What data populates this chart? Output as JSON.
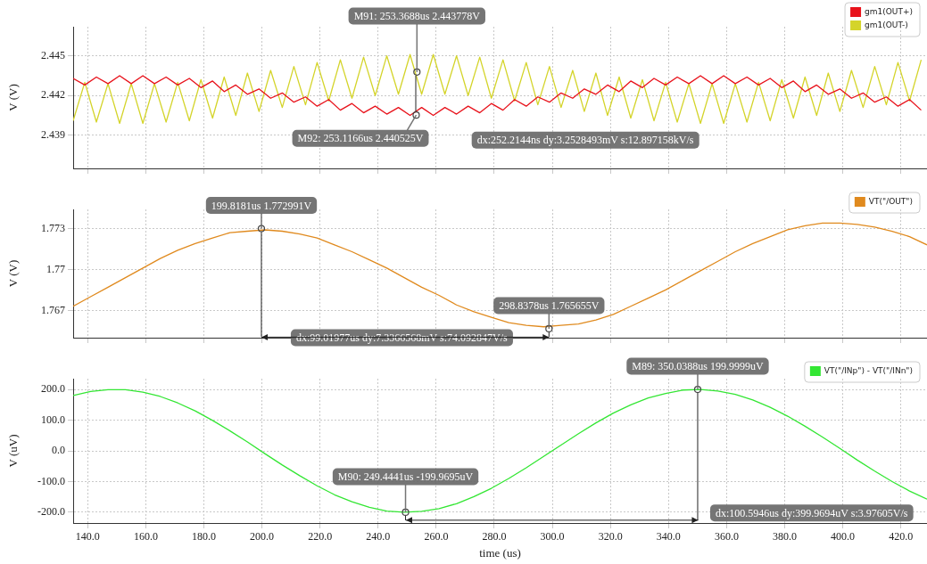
{
  "chart_data": [
    {
      "type": "line",
      "ylabel": "V (V)",
      "grid": true,
      "legend": "top right",
      "tick_labels": "y",
      "marker": "none",
      "xlim": [
        135,
        429
      ],
      "ylim": [
        2.4365,
        2.4472
      ],
      "xticks": [
        140,
        160,
        180,
        200,
        220,
        240,
        260,
        280,
        300,
        320,
        340,
        360,
        380,
        400,
        420
      ],
      "yticks": [
        2.439,
        2.442,
        2.445
      ],
      "x": [
        135,
        139,
        143,
        147,
        151,
        155,
        159,
        163,
        167,
        171,
        175,
        179,
        183,
        187,
        191,
        195,
        199,
        203,
        207,
        211,
        215,
        219,
        223,
        227,
        231,
        235,
        239,
        243,
        247,
        251,
        255,
        259,
        263,
        267,
        271,
        275,
        279,
        283,
        287,
        291,
        295,
        299,
        303,
        307,
        311,
        315,
        319,
        323,
        327,
        331,
        335,
        339,
        343,
        347,
        351,
        355,
        359,
        363,
        367,
        371,
        375,
        379,
        383,
        387,
        391,
        395,
        399,
        403,
        407,
        411,
        415,
        419,
        423,
        427
      ],
      "series": [
        {
          "name": "gm1(OUT+)",
          "color": "#e8121b",
          "values": [
            2.4433,
            2.4428,
            2.4434,
            2.4429,
            2.4435,
            2.4429,
            2.4435,
            2.4429,
            2.4434,
            2.4428,
            2.4433,
            2.4426,
            2.4431,
            2.4423,
            2.4428,
            2.4421,
            2.4425,
            2.4418,
            2.4422,
            2.4415,
            2.4419,
            2.4412,
            2.4417,
            2.4409,
            2.4414,
            2.4407,
            2.4412,
            2.4406,
            2.4411,
            2.4405,
            2.4411,
            2.4405,
            2.4411,
            2.4406,
            2.4412,
            2.4407,
            2.4414,
            2.4409,
            2.4417,
            2.4412,
            2.4419,
            2.4415,
            2.4422,
            2.4418,
            2.4425,
            2.4421,
            2.4428,
            2.4423,
            2.4431,
            2.4426,
            2.4433,
            2.4428,
            2.4434,
            2.4429,
            2.4435,
            2.4429,
            2.4435,
            2.4429,
            2.4434,
            2.4428,
            2.4433,
            2.4426,
            2.4431,
            2.4423,
            2.4428,
            2.4421,
            2.4425,
            2.4418,
            2.4422,
            2.4415,
            2.4419,
            2.4412,
            2.4417,
            2.4409
          ]
        },
        {
          "name": "gm1(OUT-)",
          "color": "#d4d42a",
          "values": [
            2.4401,
            2.443,
            2.44,
            2.4429,
            2.4399,
            2.4429,
            2.4399,
            2.4429,
            2.44,
            2.443,
            2.4401,
            2.4432,
            2.4403,
            2.4434,
            2.4405,
            2.4437,
            2.4408,
            2.4439,
            2.4411,
            2.4442,
            2.4413,
            2.4445,
            2.4416,
            2.4447,
            2.4418,
            2.4449,
            2.442,
            2.445,
            2.4421,
            2.4451,
            2.4421,
            2.4451,
            2.4421,
            2.445,
            2.442,
            2.4449,
            2.4418,
            2.4447,
            2.4416,
            2.4445,
            2.4413,
            2.4442,
            2.4411,
            2.4439,
            2.4408,
            2.4437,
            2.4405,
            2.4434,
            2.4403,
            2.4432,
            2.4401,
            2.443,
            2.44,
            2.4429,
            2.4399,
            2.4429,
            2.4399,
            2.4429,
            2.44,
            2.443,
            2.4401,
            2.4432,
            2.4403,
            2.4434,
            2.4405,
            2.4437,
            2.4408,
            2.4439,
            2.4411,
            2.4442,
            2.4413,
            2.4445,
            2.4416,
            2.4447
          ]
        }
      ],
      "annotations": [
        {
          "text": "M91: 253.3688us 2.443778V",
          "x": 253.3688,
          "y": 2.443778
        },
        {
          "text": "M92: 253.1166us 2.440525V",
          "x": 253.1166,
          "y": 2.440525
        },
        "dx:252.2144ns dy:3.2528493mV s:12.897158kV/s"
      ]
    },
    {
      "type": "line",
      "ylabel": "V (V)",
      "grid": true,
      "legend": "top right",
      "tick_labels": "y",
      "marker": "none",
      "xlim": [
        135,
        429
      ],
      "ylim": [
        1.765,
        1.7744
      ],
      "xticks": [
        140,
        160,
        180,
        200,
        220,
        240,
        260,
        280,
        300,
        320,
        340,
        360,
        380,
        400,
        420
      ],
      "yticks": [
        1.767,
        1.77,
        1.773
      ],
      "x": [
        135,
        141,
        147,
        153,
        159,
        165,
        171,
        177,
        183,
        189,
        195,
        201,
        207,
        213,
        219,
        225,
        231,
        237,
        243,
        249,
        255,
        261,
        267,
        273,
        279,
        285,
        291,
        297,
        303,
        309,
        315,
        321,
        327,
        333,
        339,
        345,
        351,
        357,
        363,
        369,
        375,
        381,
        387,
        393,
        399,
        405,
        411,
        417,
        423,
        429
      ],
      "series": [
        {
          "name": "VT(\"/OUT\")",
          "color": "#e08a1e",
          "values": [
            1.7673,
            1.768,
            1.7687,
            1.7694,
            1.7701,
            1.7708,
            1.7714,
            1.7719,
            1.7723,
            1.7727,
            1.7728,
            1.7729,
            1.7728,
            1.7726,
            1.7723,
            1.7718,
            1.7713,
            1.7707,
            1.7701,
            1.7694,
            1.7687,
            1.7681,
            1.7674,
            1.7669,
            1.7665,
            1.7661,
            1.7659,
            1.7658,
            1.7659,
            1.766,
            1.7663,
            1.7667,
            1.7673,
            1.7679,
            1.7685,
            1.7692,
            1.7699,
            1.7706,
            1.7713,
            1.7719,
            1.7724,
            1.7729,
            1.7732,
            1.7734,
            1.7734,
            1.7733,
            1.7731,
            1.7728,
            1.7724,
            1.7718
          ]
        }
      ],
      "ref_lines": [
        {
          "axis": "x",
          "value": 199.8181
        },
        {
          "axis": "x",
          "value": 298.8378
        }
      ],
      "annotations": [
        {
          "text": "199.8181us 1.772991V",
          "x": 199.8181,
          "y": 1.772991
        },
        {
          "text": "298.8378us 1.765655V",
          "x": 298.8378,
          "y": 1.765655
        },
        "dx:99.01977us dy:7.3366568mV s:74.092847V/s"
      ]
    },
    {
      "type": "line",
      "xlabel": "time (us)",
      "ylabel": "V (uV)",
      "grid": true,
      "legend": "top right",
      "marker": "none",
      "xlim": [
        135,
        429
      ],
      "ylim": [
        -235,
        235
      ],
      "xticks": [
        {
          "value": 140,
          "label": "140.0"
        },
        {
          "value": 160,
          "label": "160.0"
        },
        {
          "value": 180,
          "label": "180.0"
        },
        {
          "value": 200,
          "label": "200.0"
        },
        {
          "value": 220,
          "label": "220.0"
        },
        {
          "value": 240,
          "label": "240.0"
        },
        {
          "value": 260,
          "label": "260.0"
        },
        {
          "value": 280,
          "label": "280.0"
        },
        {
          "value": 300,
          "label": "300.0"
        },
        {
          "value": 320,
          "label": "320.0"
        },
        {
          "value": 340,
          "label": "340.0"
        },
        {
          "value": 360,
          "label": "360.0"
        },
        {
          "value": 380,
          "label": "380.0"
        },
        {
          "value": 400,
          "label": "400.0"
        },
        {
          "value": 420,
          "label": "420.0"
        }
      ],
      "yticks": [
        {
          "value": -200,
          "label": "-200.0"
        },
        {
          "value": -100,
          "label": "-100.0"
        },
        {
          "value": 0,
          "label": "0.0"
        },
        {
          "value": 100,
          "label": "100.0"
        },
        {
          "value": 200,
          "label": "200.0"
        }
      ],
      "x": [
        135,
        141,
        147,
        153,
        159,
        165,
        171,
        177,
        183,
        189,
        195,
        201,
        207,
        213,
        219,
        225,
        231,
        237,
        243,
        249,
        255,
        261,
        267,
        273,
        279,
        285,
        291,
        297,
        303,
        309,
        315,
        321,
        327,
        333,
        339,
        345,
        351,
        357,
        363,
        369,
        375,
        381,
        387,
        393,
        399,
        405,
        411,
        417,
        423,
        429
      ],
      "series": [
        {
          "name": "VT(\"/INp\") - VT(\"/INn\")",
          "color": "#33e633",
          "values": [
            180,
            193,
            199,
            199,
            191,
            177,
            156,
            130,
            99,
            65,
            29,
            -9,
            -46,
            -81,
            -114,
            -143,
            -166,
            -184,
            -196,
            -200,
            -197,
            -188,
            -172,
            -149,
            -122,
            -90,
            -55,
            -18,
            19,
            56,
            91,
            123,
            150,
            172,
            187,
            198,
            200,
            195,
            184,
            166,
            142,
            113,
            80,
            45,
            8,
            -30,
            -66,
            -100,
            -131,
            -157
          ]
        }
      ],
      "ref_lines": [
        {
          "axis": "x",
          "value": 350.0388
        },
        {
          "axis": "x",
          "value": 249.4441
        }
      ],
      "annotations": [
        {
          "text": "M89: 350.0388us 199.9999uV",
          "x": 350.0388,
          "y": 199.9999
        },
        {
          "text": "M90: 249.4441us -199.9695uV",
          "x": 249.4441,
          "y": -199.9695
        },
        "dx:100.5946us dy:399.9694uV s:3.97605V/s"
      ]
    }
  ]
}
